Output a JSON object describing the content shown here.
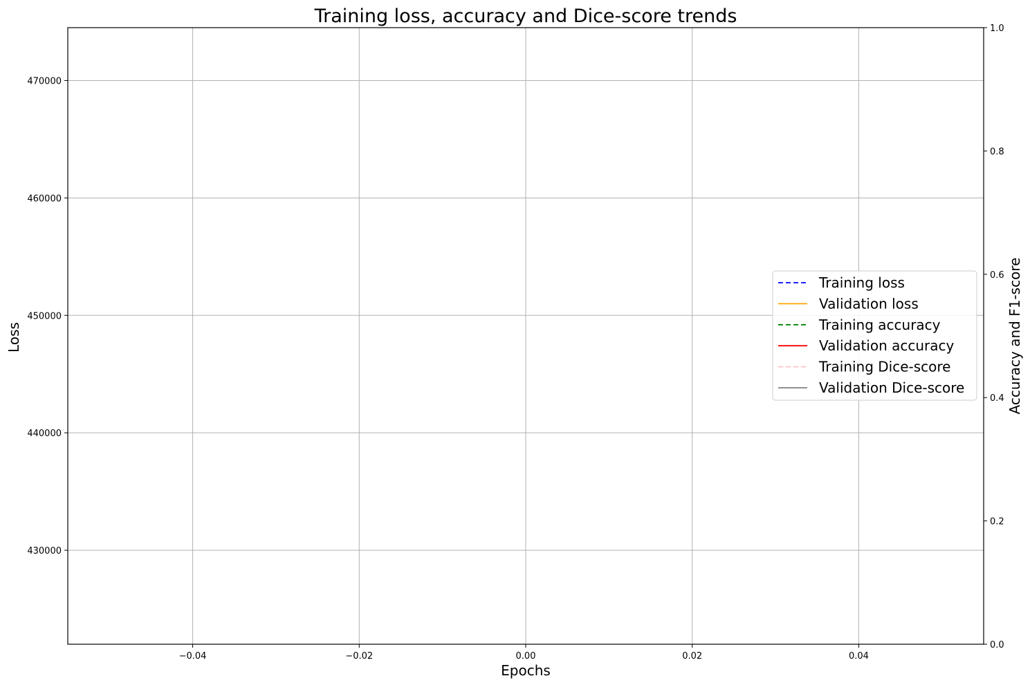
{
  "chart_data": {
    "type": "line",
    "title": "Training loss, accuracy and Dice-score trends",
    "xlabel": "Epochs",
    "ylabel": "Loss",
    "y2label": "Accuracy and F1-score",
    "xlim": [
      -0.055,
      0.055
    ],
    "ylim": [
      422000,
      474500
    ],
    "y2lim": [
      0,
      1
    ],
    "xticks": [
      -0.04,
      -0.02,
      0.0,
      0.02,
      0.04
    ],
    "xtick_labels": [
      "−0.04",
      "−0.02",
      "0.00",
      "0.02",
      "0.04"
    ],
    "yticks": [
      430000,
      440000,
      450000,
      460000,
      470000
    ],
    "ytick_labels": [
      "430000",
      "440000",
      "450000",
      "460000",
      "470000"
    ],
    "y2ticks": [
      0,
      0.2,
      0.4,
      0.6,
      0.8,
      1.0
    ],
    "y2tick_labels": [
      "0.0",
      "0.2",
      "0.4",
      "0.6",
      "0.8",
      "1.0"
    ],
    "grid": true,
    "legend_position": "center-right",
    "series": [
      {
        "name": "Training loss",
        "color": "#0000ff",
        "dashed": true,
        "axis": "left",
        "values": []
      },
      {
        "name": "Validation loss",
        "color": "#ffa500",
        "dashed": false,
        "axis": "left",
        "values": []
      },
      {
        "name": "Training accuracy",
        "color": "#008000",
        "dashed": true,
        "axis": "right",
        "values": []
      },
      {
        "name": "Validation accuracy",
        "color": "#ff0000",
        "dashed": false,
        "axis": "right",
        "values": []
      },
      {
        "name": "Training Dice-score",
        "color": "#ffc0cb",
        "dashed": true,
        "axis": "right",
        "values": []
      },
      {
        "name": "Validation Dice-score",
        "color": "#808080",
        "dashed": false,
        "axis": "right",
        "values": []
      }
    ]
  }
}
